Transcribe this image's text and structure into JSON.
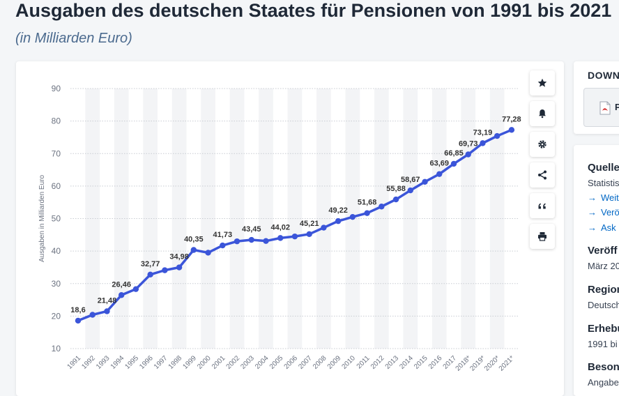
{
  "page": {
    "title": "Ausgaben des deutschen Staates für Pensionen von 1991 bis 2021",
    "subtitle": "(in Milliarden Euro)"
  },
  "toolbar": {
    "icons": [
      "star-icon",
      "bell-icon",
      "gear-icon",
      "share-icon",
      "quote-icon",
      "print-icon"
    ]
  },
  "download": {
    "heading": "DOWN",
    "pdf_label": "P"
  },
  "info": {
    "source_heading": "Quelle",
    "source_text": "Statistis",
    "links": [
      "Weit",
      "Verö",
      "Ask"
    ],
    "published_heading": "Veröff",
    "published_text": "März 20",
    "region_heading": "Region",
    "region_text": "Deutsch",
    "survey_heading": "Erhebu",
    "survey_text": "1991 bi",
    "special_heading": "Beson",
    "special_text": "Angabe"
  },
  "colors": {
    "line": "#3b55d9",
    "grid": "#c8ccd2",
    "band": "#f3f4f6",
    "label": "#333333",
    "axis_text": "#6b7280",
    "link": "#0067c5"
  },
  "chart_data": {
    "type": "line",
    "title": "Ausgaben des deutschen Staates für Pensionen von 1991 bis 2021",
    "ylabel": "Ausgaben in Milliarden Euro",
    "xlabel": "",
    "ylim": [
      10,
      90
    ],
    "yticks": [
      10,
      20,
      30,
      40,
      50,
      60,
      70,
      80,
      90
    ],
    "grid": true,
    "categories": [
      "1991",
      "1992",
      "1993",
      "1994",
      "1995",
      "1996",
      "1997",
      "1998",
      "1999",
      "2000",
      "2001",
      "2002",
      "2003",
      "2004",
      "2005",
      "2006",
      "2007",
      "2008",
      "2009",
      "2010",
      "2011",
      "2012",
      "2013",
      "2014",
      "2015",
      "2016",
      "2017",
      "2018*",
      "2019*",
      "2020*",
      "2021*"
    ],
    "values": [
      18.6,
      20.4,
      21.48,
      26.46,
      28.3,
      32.77,
      34.1,
      34.98,
      40.35,
      39.5,
      41.73,
      43.0,
      43.45,
      43.1,
      44.02,
      44.5,
      45.21,
      47.2,
      49.22,
      50.5,
      51.68,
      53.7,
      55.88,
      58.67,
      61.3,
      63.69,
      66.85,
      69.73,
      73.19,
      75.4,
      77.28
    ],
    "data_labels": [
      {
        "index": 0,
        "text": "18,6"
      },
      {
        "index": 2,
        "text": "21,48"
      },
      {
        "index": 3,
        "text": "26,46"
      },
      {
        "index": 5,
        "text": "32,77"
      },
      {
        "index": 7,
        "text": "34,98"
      },
      {
        "index": 8,
        "text": "40,35"
      },
      {
        "index": 10,
        "text": "41,73"
      },
      {
        "index": 12,
        "text": "43,45"
      },
      {
        "index": 14,
        "text": "44,02"
      },
      {
        "index": 16,
        "text": "45,21"
      },
      {
        "index": 18,
        "text": "49,22"
      },
      {
        "index": 20,
        "text": "51,68"
      },
      {
        "index": 22,
        "text": "55,88"
      },
      {
        "index": 23,
        "text": "58,67"
      },
      {
        "index": 25,
        "text": "63,69"
      },
      {
        "index": 26,
        "text": "66,85"
      },
      {
        "index": 27,
        "text": "69,73"
      },
      {
        "index": 28,
        "text": "73,19"
      },
      {
        "index": 30,
        "text": "77,28"
      }
    ]
  }
}
